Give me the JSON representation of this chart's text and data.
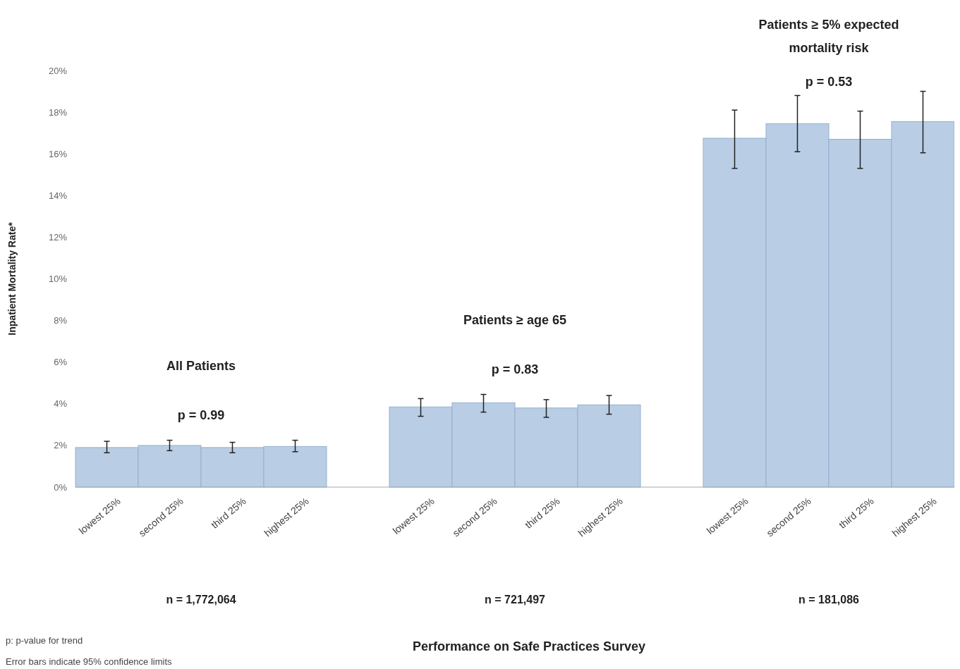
{
  "chart_data": {
    "type": "bar",
    "ylabel": "Inpatient Mortality Rate*",
    "categories": [
      "lowest 25%",
      "second 25%",
      "third 25%",
      "highest 25%",
      null,
      "lowest 25%",
      "second 25%",
      "third 25%",
      "highest 25%",
      null,
      "lowest 25%",
      "second 25%",
      "third 25%",
      "highest 25%"
    ],
    "values": [
      1.9,
      2.0,
      1.9,
      1.95,
      null,
      3.85,
      4.05,
      3.8,
      3.95,
      null,
      16.75,
      17.45,
      16.7,
      17.55
    ],
    "errors": [
      [
        1.65,
        2.2
      ],
      [
        1.75,
        2.25
      ],
      [
        1.65,
        2.15
      ],
      [
        1.7,
        2.25
      ],
      null,
      [
        3.4,
        4.25
      ],
      [
        3.6,
        4.45
      ],
      [
        3.35,
        4.2
      ],
      [
        3.5,
        4.4
      ],
      null,
      [
        15.3,
        18.1
      ],
      [
        16.1,
        18.8
      ],
      [
        15.3,
        18.05
      ],
      [
        16.05,
        19.0
      ]
    ],
    "color": "#b9cde5",
    "ylim": [
      0,
      20
    ],
    "yticks": [
      {
        "value": 0,
        "label": "0%"
      },
      {
        "value": 2,
        "label": "2%"
      },
      {
        "value": 4,
        "label": "4%"
      },
      {
        "value": 6,
        "label": "6%"
      },
      {
        "value": 8,
        "label": "8%"
      },
      {
        "value": 10,
        "label": "10%"
      },
      {
        "value": 12,
        "label": "12%"
      },
      {
        "value": 14,
        "label": "14%"
      },
      {
        "value": 16,
        "label": "16%"
      },
      {
        "value": 18,
        "label": "18%"
      },
      {
        "value": 20,
        "label": "20%"
      }
    ],
    "grid": false,
    "annotations": [
      "All Patients",
      "Patients ≥ age 65",
      "Patients ≥ 5% expected mortality risk",
      "p = 0.99",
      "p = 0.83",
      "p = 0.53",
      "n = 1,772,064",
      "n = 721,497",
      "n = 181,086",
      "Performance on Safe Practices Survey",
      "p: p-value for trend",
      "Error bars indicate 95% confidence limits"
    ]
  }
}
